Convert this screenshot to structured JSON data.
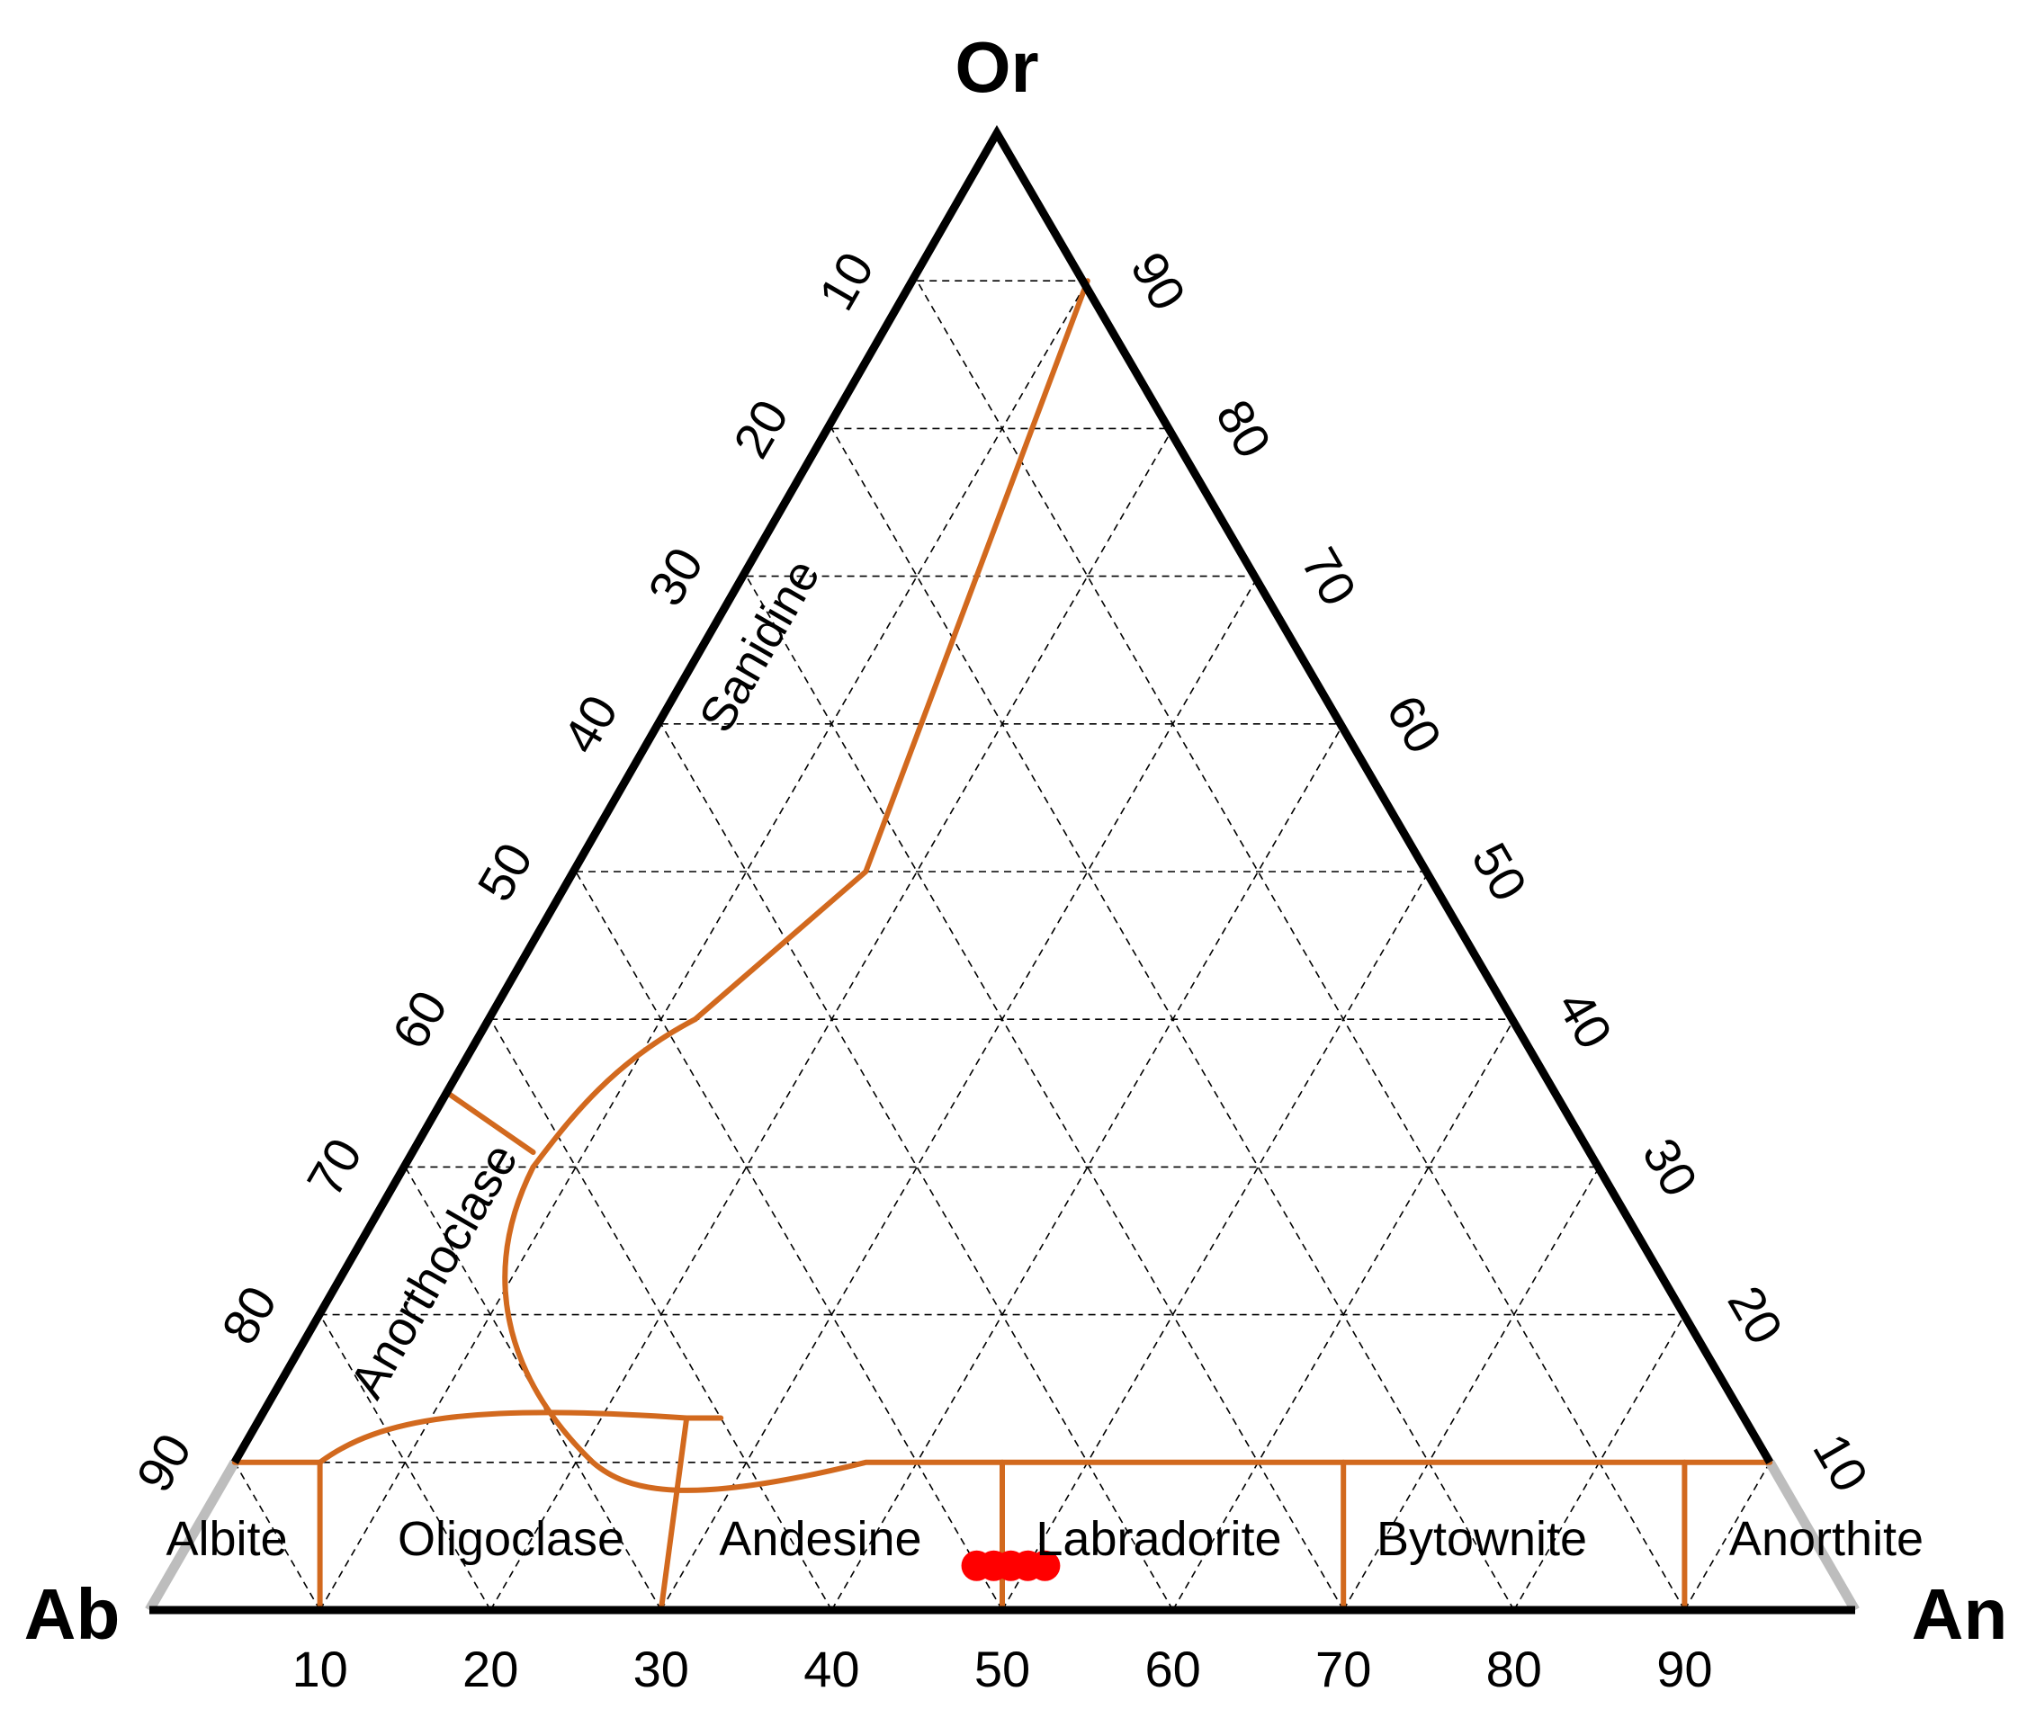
{
  "vertices": {
    "top": "Or",
    "left": "Ab",
    "right": "An"
  },
  "ticks": {
    "bottom": [
      "10",
      "20",
      "30",
      "40",
      "50",
      "60",
      "70",
      "80",
      "90"
    ],
    "left": [
      "10",
      "20",
      "30",
      "40",
      "50",
      "60",
      "70",
      "80",
      "90"
    ],
    "right": [
      "10",
      "20",
      "30",
      "40",
      "50",
      "60",
      "70",
      "80",
      "90"
    ]
  },
  "fields": {
    "sanidine": "Sanidine",
    "anorthoclase": "Anorthoclase",
    "albite": "Albite",
    "oligoclase": "Oligoclase",
    "andesine": "Andesine",
    "labradorite": "Labradorite",
    "bytownite": "Bytownite",
    "anorthite": "Anorthite"
  },
  "colors": {
    "boundary": "#d2691e",
    "sample": "#ff0000",
    "frame": "#000000",
    "grid": "#000000"
  },
  "chart_data": {
    "type": "ternary",
    "components": [
      "Or",
      "Ab",
      "An"
    ],
    "grid_step": 10,
    "plagioclase_divisions_An": [
      10,
      30,
      50,
      70,
      90
    ],
    "samples": [
      {
        "An": 47,
        "Ab": 50,
        "Or": 3
      },
      {
        "An": 48,
        "Ab": 49,
        "Or": 3
      },
      {
        "An": 49,
        "Ab": 48,
        "Or": 3
      },
      {
        "An": 50,
        "Ab": 47,
        "Or": 3
      },
      {
        "An": 51,
        "Ab": 46,
        "Or": 3
      }
    ]
  }
}
